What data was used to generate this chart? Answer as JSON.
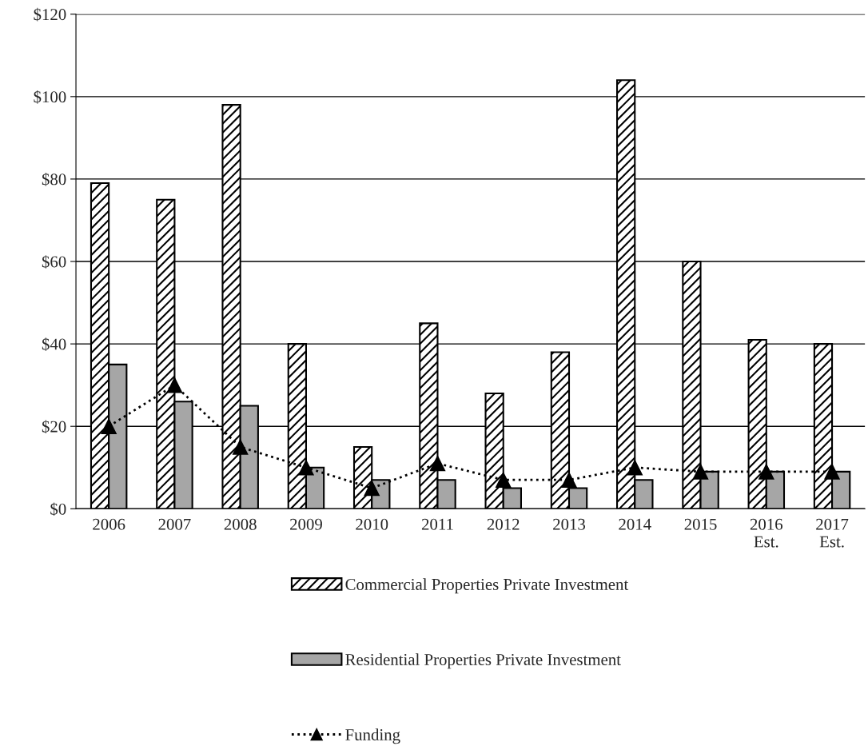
{
  "chart_data": {
    "type": "bar",
    "categories": [
      "2006",
      "2007",
      "2008",
      "2009",
      "2010",
      "2011",
      "2012",
      "2013",
      "2014",
      "2015",
      "2016\nEst.",
      "2017\nEst."
    ],
    "series": [
      {
        "name": "Commercial Properties Private Investment",
        "color": "#ffffff",
        "values": [
          79,
          75,
          98,
          40,
          15,
          45,
          28,
          38,
          104,
          60,
          41,
          40
        ]
      },
      {
        "name": "Residential Properties Private Investment",
        "color": "#a6a6a6",
        "values": [
          35,
          26,
          25,
          10,
          7,
          7,
          5,
          5,
          7,
          9,
          9,
          9
        ]
      },
      {
        "name": "Funding",
        "type": "line",
        "color": "#000000",
        "marker": "triangle",
        "line_style": "dotted",
        "values": [
          20,
          30,
          15,
          10,
          5,
          11,
          7,
          7,
          10,
          9,
          9,
          9
        ]
      }
    ],
    "ylim": [
      0,
      120
    ],
    "yticks": [
      {
        "value": 0,
        "label": "$0"
      },
      {
        "value": 20,
        "label": "$20"
      },
      {
        "value": 40,
        "label": "$40"
      },
      {
        "value": 60,
        "label": "$60"
      },
      {
        "value": 80,
        "label": "$80"
      },
      {
        "value": 100,
        "label": "$100"
      },
      {
        "value": 120,
        "label": "$120"
      }
    ],
    "grid": "y",
    "legend": "bottom"
  }
}
